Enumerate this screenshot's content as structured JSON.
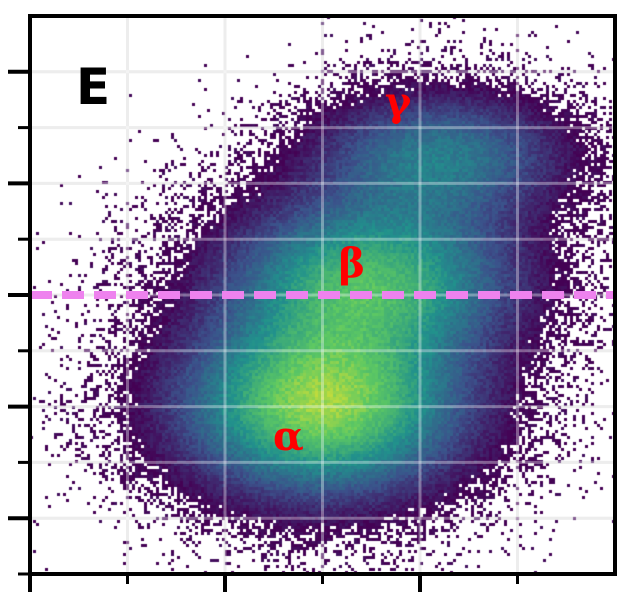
{
  "chart_data": {
    "type": "heatmap",
    "title": "",
    "xlabel": "",
    "ylabel": "",
    "xlim": [
      0,
      12
    ],
    "ylim": [
      0,
      10
    ],
    "grid": true,
    "panel_label": "E",
    "threshold_line": {
      "y": 5,
      "color": "#ee82ee",
      "style": "dashed"
    },
    "x_major_ticks": [
      0,
      4,
      8
    ],
    "x_minor_ticks": [
      2,
      6,
      10
    ],
    "y_major_ticks": [
      1,
      3,
      5,
      7,
      9
    ],
    "y_minor_ticks": [
      0,
      2,
      4,
      6,
      8
    ],
    "clusters": [
      {
        "label": "α",
        "x": 6.0,
        "y": 3.0,
        "sx": 1.9,
        "sy": 1.05,
        "weight": 0.44
      },
      {
        "label": "β",
        "x": 7.0,
        "y": 5.3,
        "sx": 1.95,
        "sy": 0.95,
        "weight": 0.34
      },
      {
        "label": "γ",
        "x": 8.4,
        "y": 7.5,
        "sx": 1.7,
        "sy": 0.75,
        "weight": 0.22
      }
    ],
    "colormap": [
      "#440154",
      "#3b528b",
      "#21918c",
      "#5ec962",
      "#fde725"
    ],
    "label_color": "#ff0000"
  }
}
